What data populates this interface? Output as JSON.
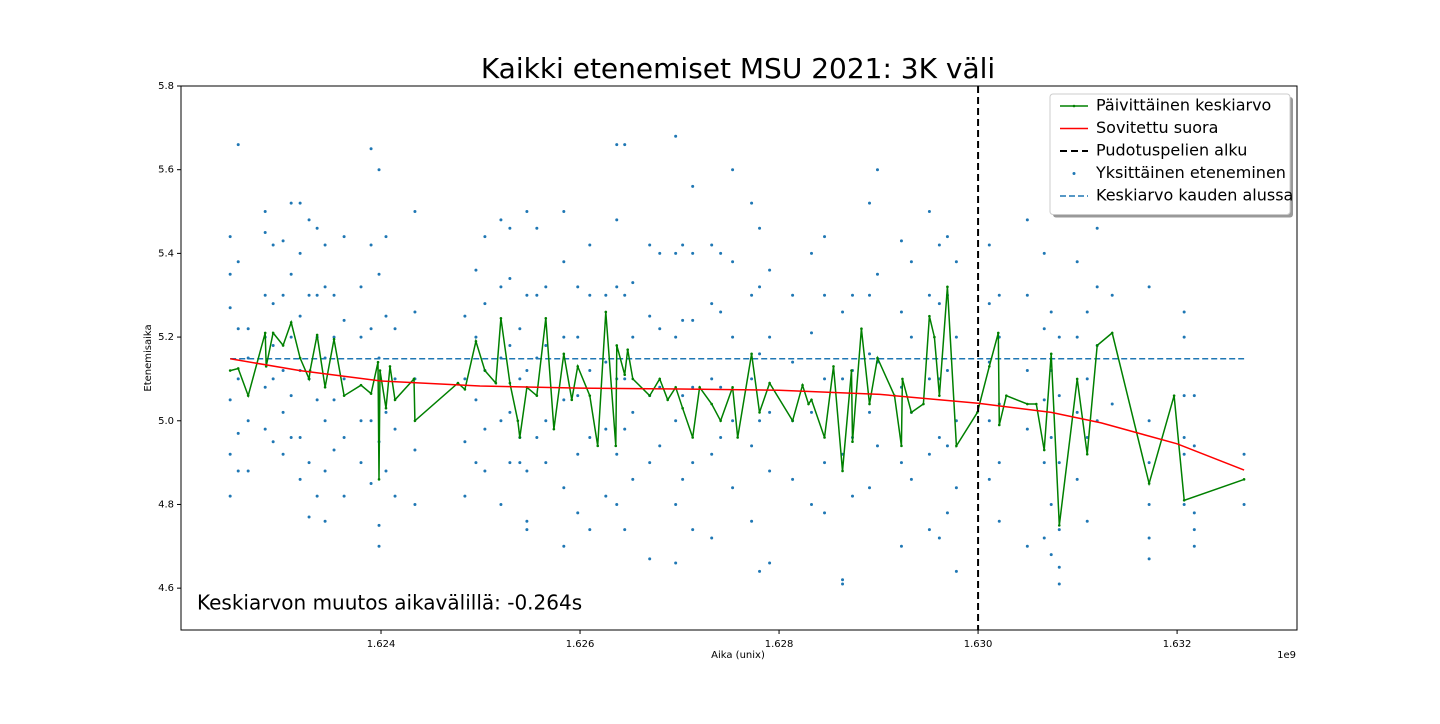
{
  "chart_data": {
    "type": "scatter-line",
    "title": "Kaikki etenemiset MSU 2021: 3K väli",
    "x_label": "Aika (unix)",
    "y_label": "Etenemisaika",
    "x_offset_label": "1e9",
    "annotation": "Keskiarvon muutos aikavälillä: -0.264s",
    "xlim": [
      1621990000,
      1633205000
    ],
    "ylim": [
      4.5,
      5.8
    ],
    "xticks": [
      {
        "value": 1624000000,
        "label": "1.624"
      },
      {
        "value": 1626000000,
        "label": "1.626"
      },
      {
        "value": 1628000000,
        "label": "1.628"
      },
      {
        "value": 1630000000,
        "label": "1.630"
      },
      {
        "value": 1632000000,
        "label": "1.632"
      }
    ],
    "yticks": [
      4.6,
      4.8,
      {
        "value": 5.0,
        "label": "5.0"
      },
      5.2,
      5.4,
      5.6,
      5.8
    ],
    "grid": false,
    "legend": "upper right",
    "series": [
      {
        "name": "Päivittäinen keskiarvo",
        "kind": "line",
        "marker": true,
        "color": "#008000",
        "x": [
          1622484000,
          1622565000,
          1622665000,
          1622836000,
          1622846000,
          1622916000,
          1623016000,
          1623097000,
          1623187000,
          1623277000,
          1623287000,
          1623358000,
          1623438000,
          1623528000,
          1623629000,
          1623799000,
          1623900000,
          1623970000,
          1623980000,
          1623990000,
          1624050000,
          1624090000,
          1624141000,
          1624331000,
          1624341000,
          1624773000,
          1624843000,
          1624954000,
          1625044000,
          1625154000,
          1625205000,
          1625295000,
          1625375000,
          1625395000,
          1625466000,
          1625566000,
          1625656000,
          1625737000,
          1625837000,
          1625917000,
          1625977000,
          1626098000,
          1626178000,
          1626259000,
          1626359000,
          1626369000,
          1626449000,
          1626479000,
          1626530000,
          1626700000,
          1626801000,
          1626881000,
          1626961000,
          1627031000,
          1627132000,
          1627202000,
          1627323000,
          1627413000,
          1627533000,
          1627584000,
          1627724000,
          1627804000,
          1627905000,
          1628136000,
          1628236000,
          1628296000,
          1628326000,
          1628457000,
          1628547000,
          1628638000,
          1628728000,
          1628738000,
          1628828000,
          1628909000,
          1628989000,
          1629160000,
          1629230000,
          1629240000,
          1629330000,
          1629451000,
          1629511000,
          1629561000,
          1629611000,
          1629692000,
          1629782000,
          1629993000,
          1630113000,
          1630203000,
          1630213000,
          1630284000,
          1630495000,
          1630585000,
          1630665000,
          1630735000,
          1630816000,
          1630996000,
          1631097000,
          1631197000,
          1631348000,
          1631719000,
          1631970000,
          1632071000,
          1632673000
        ],
        "values": [
          5.12,
          5.125,
          5.06,
          5.21,
          5.13,
          5.21,
          5.18,
          5.235,
          5.15,
          5.1,
          5.12,
          5.205,
          5.08,
          5.195,
          5.06,
          5.085,
          5.065,
          5.14,
          4.86,
          5.12,
          5.03,
          5.13,
          5.05,
          5.1,
          5.0,
          5.09,
          5.075,
          5.19,
          5.12,
          5.09,
          5.245,
          5.09,
          5.0,
          4.96,
          5.08,
          5.06,
          5.245,
          4.98,
          5.16,
          5.05,
          5.13,
          5.06,
          4.94,
          5.26,
          4.94,
          5.18,
          5.11,
          5.17,
          5.1,
          5.06,
          5.1,
          5.05,
          5.08,
          5.03,
          4.96,
          5.08,
          5.04,
          5.0,
          5.08,
          4.96,
          5.16,
          5.02,
          5.09,
          5.0,
          5.085,
          5.04,
          5.05,
          4.96,
          5.13,
          4.88,
          5.12,
          4.95,
          5.22,
          5.04,
          5.15,
          5.06,
          4.94,
          5.1,
          5.02,
          5.04,
          5.25,
          5.2,
          5.06,
          5.32,
          4.94,
          5.02,
          5.13,
          5.21,
          4.99,
          5.06,
          5.04,
          5.04,
          4.93,
          5.16,
          4.75,
          5.1,
          4.92,
          5.18,
          5.21,
          4.85,
          5.06,
          4.81,
          4.86
        ]
      },
      {
        "name": "Sovitettu suora",
        "kind": "line",
        "color": "#ff0000",
        "x": [
          1622484000,
          1623187000,
          1624000000,
          1624994000,
          1626000000,
          1627001000,
          1628000000,
          1629014000,
          1630000000,
          1630735000,
          1631237000,
          1632000000,
          1632673000
        ],
        "values": [
          5.148,
          5.12,
          5.095,
          5.083,
          5.078,
          5.076,
          5.073,
          5.063,
          5.042,
          5.02,
          4.995,
          4.945,
          4.882
        ]
      },
      {
        "name": "Pudotuspelien alku",
        "kind": "vline",
        "color": "#000000",
        "x": 1630000000
      },
      {
        "name": "Yksittäinen eteneminen",
        "kind": "scatter",
        "color": "#1f77b4",
        "x": [
          1622484000,
          1622484000,
          1622484000,
          1622484000,
          1622484000,
          1622484000,
          1622565000,
          1622565000,
          1622565000,
          1622565000,
          1622565000,
          1622565000,
          1622665000,
          1622665000,
          1622665000,
          1622665000,
          1622836000,
          1622836000,
          1622836000,
          1622836000,
          1622836000,
          1622836000,
          1622916000,
          1622916000,
          1622916000,
          1622916000,
          1622916000,
          1623016000,
          1623016000,
          1623016000,
          1623016000,
          1623016000,
          1623097000,
          1623097000,
          1623097000,
          1623097000,
          1623097000,
          1623187000,
          1623187000,
          1623187000,
          1623187000,
          1623187000,
          1623187000,
          1623277000,
          1623277000,
          1623277000,
          1623277000,
          1623277000,
          1623358000,
          1623358000,
          1623358000,
          1623358000,
          1623358000,
          1623438000,
          1623438000,
          1623438000,
          1623438000,
          1623438000,
          1623438000,
          1623528000,
          1623528000,
          1623528000,
          1623528000,
          1623629000,
          1623629000,
          1623629000,
          1623629000,
          1623629000,
          1623799000,
          1623799000,
          1623799000,
          1623799000,
          1623900000,
          1623900000,
          1623900000,
          1623900000,
          1623900000,
          1623980000,
          1623980000,
          1623980000,
          1623980000,
          1623980000,
          1623980000,
          1624050000,
          1624050000,
          1624050000,
          1624050000,
          1624141000,
          1624141000,
          1624141000,
          1624141000,
          1624341000,
          1624341000,
          1624341000,
          1624341000,
          1624341000,
          1624843000,
          1624843000,
          1624843000,
          1624843000,
          1624954000,
          1624954000,
          1624954000,
          1624954000,
          1625044000,
          1625044000,
          1625044000,
          1625044000,
          1625044000,
          1625205000,
          1625205000,
          1625205000,
          1625205000,
          1625205000,
          1625295000,
          1625295000,
          1625295000,
          1625295000,
          1625295000,
          1625395000,
          1625395000,
          1625395000,
          1625395000,
          1625466000,
          1625466000,
          1625466000,
          1625466000,
          1625466000,
          1625466000,
          1625566000,
          1625566000,
          1625566000,
          1625566000,
          1625656000,
          1625656000,
          1625656000,
          1625656000,
          1625837000,
          1625837000,
          1625837000,
          1625837000,
          1625837000,
          1625837000,
          1625977000,
          1625977000,
          1625977000,
          1625977000,
          1625977000,
          1626098000,
          1626098000,
          1626098000,
          1626098000,
          1626098000,
          1626259000,
          1626259000,
          1626259000,
          1626259000,
          1626369000,
          1626369000,
          1626369000,
          1626369000,
          1626369000,
          1626369000,
          1626449000,
          1626449000,
          1626449000,
          1626449000,
          1626449000,
          1626530000,
          1626530000,
          1626530000,
          1626530000,
          1626700000,
          1626700000,
          1626700000,
          1626700000,
          1626700000,
          1626801000,
          1626801000,
          1626801000,
          1626801000,
          1626961000,
          1626961000,
          1626961000,
          1626961000,
          1626961000,
          1626961000,
          1627031000,
          1627031000,
          1627031000,
          1627031000,
          1627132000,
          1627132000,
          1627132000,
          1627132000,
          1627132000,
          1627132000,
          1627323000,
          1627323000,
          1627323000,
          1627323000,
          1627323000,
          1627413000,
          1627413000,
          1627413000,
          1627413000,
          1627533000,
          1627533000,
          1627533000,
          1627533000,
          1627533000,
          1627724000,
          1627724000,
          1627724000,
          1627724000,
          1627724000,
          1627804000,
          1627804000,
          1627804000,
          1627804000,
          1627804000,
          1627905000,
          1627905000,
          1627905000,
          1627905000,
          1627905000,
          1628136000,
          1628136000,
          1628136000,
          1628136000,
          1628326000,
          1628326000,
          1628326000,
          1628326000,
          1628457000,
          1628457000,
          1628457000,
          1628457000,
          1628457000,
          1628638000,
          1628638000,
          1628638000,
          1628638000,
          1628638000,
          1628738000,
          1628738000,
          1628738000,
          1628738000,
          1628909000,
          1628909000,
          1628909000,
          1628909000,
          1628909000,
          1628989000,
          1628989000,
          1628989000,
          1628989000,
          1629230000,
          1629230000,
          1629230000,
          1629230000,
          1629230000,
          1629330000,
          1629330000,
          1629330000,
          1629330000,
          1629511000,
          1629511000,
          1629511000,
          1629511000,
          1629511000,
          1629611000,
          1629611000,
          1629611000,
          1629611000,
          1629611000,
          1629692000,
          1629692000,
          1629692000,
          1629692000,
          1629692000,
          1629782000,
          1629782000,
          1629782000,
          1629782000,
          1629782000,
          1630113000,
          1630113000,
          1630113000,
          1630113000,
          1630113000,
          1630213000,
          1630213000,
          1630213000,
          1630213000,
          1630213000,
          1630495000,
          1630495000,
          1630495000,
          1630495000,
          1630495000,
          1630665000,
          1630665000,
          1630665000,
          1630665000,
          1630665000,
          1630735000,
          1630735000,
          1630735000,
          1630735000,
          1630735000,
          1630816000,
          1630816000,
          1630816000,
          1630816000,
          1630816000,
          1630816000,
          1630996000,
          1630996000,
          1630996000,
          1630996000,
          1631097000,
          1631097000,
          1631097000,
          1631097000,
          1631197000,
          1631197000,
          1631197000,
          1631197000,
          1631348000,
          1631348000,
          1631719000,
          1631719000,
          1631719000,
          1631719000,
          1631719000,
          1631719000,
          1632071000,
          1632071000,
          1632071000,
          1632071000,
          1632071000,
          1632071000,
          1632173000,
          1632173000,
          1632173000,
          1632173000,
          1632173000,
          1632673000,
          1632673000
        ],
        "values": [
          5.44,
          5.35,
          5.27,
          5.05,
          4.92,
          4.82,
          5.66,
          5.38,
          5.22,
          5.1,
          4.97,
          4.88,
          5.22,
          5.15,
          5.0,
          4.88,
          5.5,
          5.45,
          5.3,
          5.2,
          5.08,
          4.98,
          5.42,
          5.28,
          5.18,
          5.1,
          4.95,
          5.43,
          5.3,
          5.12,
          5.02,
          4.92,
          5.52,
          5.35,
          5.2,
          5.06,
          4.96,
          5.52,
          5.4,
          5.25,
          5.12,
          4.96,
          4.86,
          5.48,
          5.3,
          5.1,
          4.9,
          4.77,
          5.46,
          5.3,
          5.2,
          5.05,
          4.82,
          5.42,
          5.32,
          5.15,
          5.0,
          4.88,
          4.76,
          5.3,
          5.2,
          5.05,
          4.93,
          5.44,
          5.24,
          5.1,
          4.96,
          4.82,
          5.32,
          5.2,
          5.0,
          4.9,
          5.65,
          5.42,
          5.22,
          5.0,
          4.85,
          5.6,
          5.35,
          5.15,
          4.95,
          4.75,
          4.7,
          5.44,
          5.25,
          5.02,
          4.88,
          5.22,
          5.1,
          4.98,
          4.82,
          5.5,
          5.26,
          5.1,
          4.93,
          4.8,
          5.25,
          5.1,
          4.95,
          4.82,
          5.36,
          5.2,
          5.05,
          4.9,
          5.44,
          5.28,
          5.12,
          4.98,
          4.88,
          5.48,
          5.32,
          5.15,
          5.0,
          4.8,
          5.46,
          5.34,
          5.18,
          5.02,
          4.9,
          5.22,
          5.1,
          4.96,
          4.9,
          5.5,
          5.3,
          5.12,
          4.88,
          4.76,
          4.74,
          5.46,
          5.3,
          5.15,
          4.96,
          5.32,
          5.18,
          5.0,
          4.9,
          5.5,
          5.38,
          5.2,
          5.05,
          4.84,
          4.7,
          5.32,
          5.2,
          5.06,
          4.92,
          4.78,
          5.42,
          5.3,
          5.12,
          4.96,
          4.74,
          5.3,
          5.14,
          4.98,
          4.82,
          5.66,
          5.48,
          5.32,
          5.1,
          4.92,
          4.8,
          5.66,
          5.3,
          5.1,
          4.98,
          4.74,
          5.33,
          5.2,
          5.02,
          4.86,
          5.42,
          5.25,
          5.06,
          4.9,
          4.67,
          5.4,
          5.22,
          5.08,
          4.94,
          5.68,
          5.4,
          5.2,
          5.0,
          4.8,
          4.66,
          5.42,
          5.24,
          5.06,
          4.86,
          5.56,
          5.4,
          5.24,
          5.08,
          4.9,
          4.74,
          5.42,
          5.28,
          5.1,
          4.92,
          4.72,
          5.4,
          5.26,
          5.08,
          4.96,
          5.6,
          5.38,
          5.2,
          5.0,
          4.84,
          5.52,
          5.3,
          5.1,
          4.94,
          4.76,
          5.46,
          5.32,
          5.16,
          5.0,
          4.64,
          5.36,
          5.2,
          5.02,
          4.88,
          4.66,
          5.3,
          5.14,
          5.0,
          4.86,
          5.4,
          5.21,
          5.02,
          4.8,
          5.44,
          5.3,
          5.1,
          4.9,
          4.78,
          5.26,
          5.1,
          4.92,
          4.62,
          4.61,
          5.3,
          5.12,
          4.96,
          4.82,
          5.52,
          5.3,
          5.16,
          5.02,
          4.84,
          5.6,
          5.35,
          5.14,
          4.94,
          5.43,
          5.26,
          5.08,
          4.9,
          4.7,
          5.38,
          5.2,
          5.02,
          4.86,
          5.5,
          5.3,
          5.1,
          4.92,
          4.74,
          5.42,
          5.28,
          5.1,
          4.96,
          4.72,
          5.44,
          5.3,
          5.12,
          4.94,
          4.78,
          5.38,
          5.2,
          5.0,
          4.84,
          4.64,
          5.42,
          5.28,
          5.14,
          5.0,
          4.86,
          5.3,
          5.2,
          5.04,
          4.9,
          4.76,
          5.48,
          5.3,
          5.12,
          4.98,
          4.7,
          5.4,
          5.22,
          5.05,
          4.9,
          4.72,
          5.26,
          5.12,
          4.96,
          4.8,
          4.68,
          5.2,
          5.06,
          4.9,
          4.74,
          4.65,
          4.61,
          5.38,
          5.2,
          5.02,
          4.86,
          5.26,
          5.1,
          4.96,
          4.76,
          5.46,
          5.32,
          5.18,
          5.0,
          5.3,
          5.04,
          5.32,
          5.0,
          4.9,
          4.8,
          4.72,
          4.67,
          5.26,
          5.2,
          5.06,
          4.96,
          4.92,
          4.8,
          5.06,
          4.94,
          4.78,
          4.74,
          4.7,
          4.92,
          4.8
        ]
      },
      {
        "name": "Keskiarvo kauden alussa",
        "kind": "hline",
        "color": "#1f77b4",
        "x": [
          1622484000,
          1632673000
        ],
        "values": [
          5.148,
          5.148
        ]
      }
    ]
  }
}
